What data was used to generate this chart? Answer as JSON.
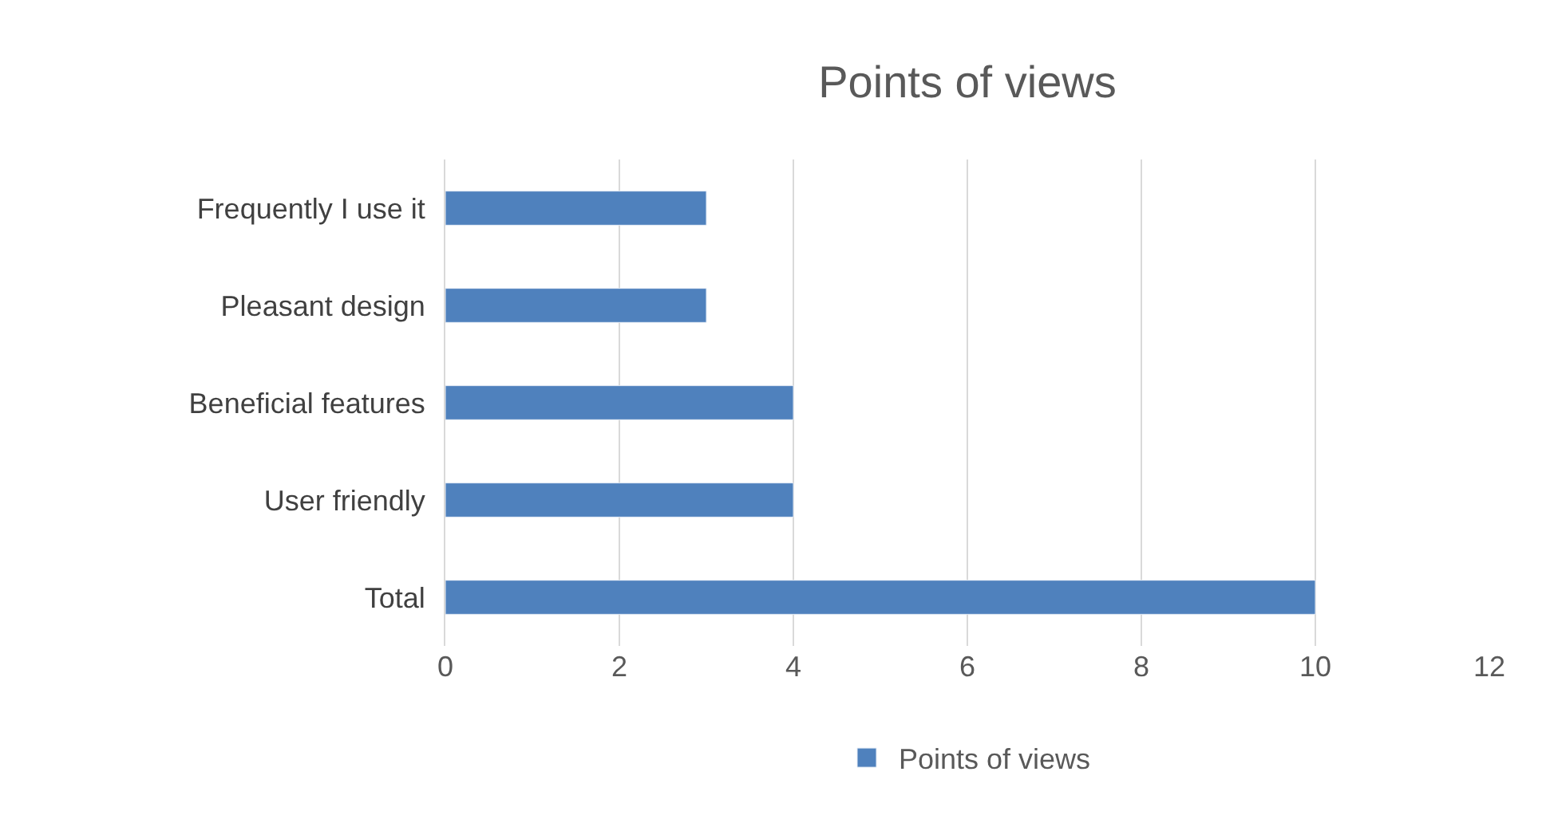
{
  "chart_data": {
    "type": "bar",
    "orientation": "horizontal",
    "title": "Points of views",
    "categories": [
      "Frequently I use it",
      "Pleasant design",
      "Beneficial features",
      "User friendly",
      "Total"
    ],
    "series": [
      {
        "name": "Points of views",
        "color": "#4f81bd",
        "values": [
          3,
          3,
          4,
          4,
          10
        ]
      }
    ],
    "xlim": [
      0,
      12
    ],
    "xticks": [
      0,
      2,
      4,
      6,
      8,
      10,
      12
    ],
    "grid": "x",
    "legend": "bottom"
  }
}
